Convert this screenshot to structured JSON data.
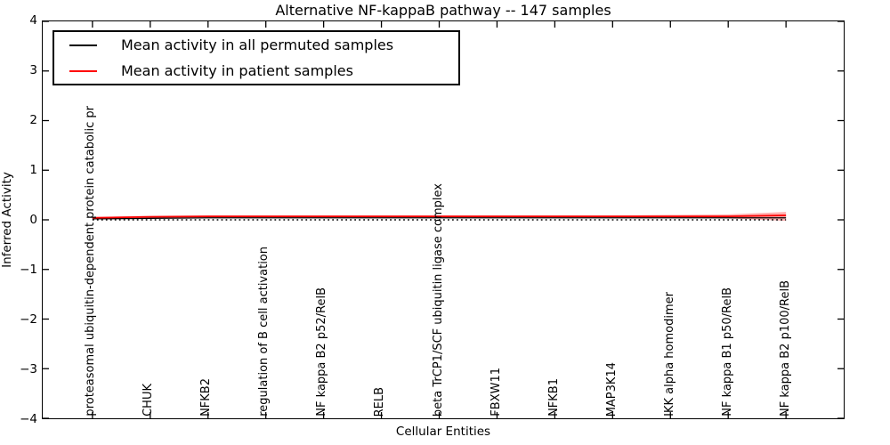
{
  "title": "Alternative NF-kappaB pathway -- 147 samples",
  "axes": {
    "xlabel": "Cellular Entities",
    "ylabel": "Inferred Activity",
    "ytick_labels": [
      "4",
      "3",
      "2",
      "1",
      "0",
      "−1",
      "−2",
      "−3",
      "−4"
    ]
  },
  "legend": {
    "entries": [
      {
        "label": "Mean activity in all permuted samples",
        "color": "#000000"
      },
      {
        "label": "Mean activity in patient samples",
        "color": "#ff0000"
      }
    ]
  },
  "chart_data": {
    "type": "line",
    "title": "Alternative NF-kappaB pathway -- 147 samples",
    "xlabel": "Cellular Entities",
    "ylabel": "Inferred Activity",
    "ylim": [
      -4,
      4
    ],
    "yticks": [
      4,
      3,
      2,
      1,
      0,
      -1,
      -2,
      -3,
      -4
    ],
    "grid": false,
    "legend_position": "upper left",
    "categories": [
      "proteasomal ubiquitin-dependent protein catabolic pr",
      "CHUK",
      "NFKB2",
      "regulation of B cell activation",
      "NF kappa B2 p52/RelB",
      "RELB",
      "beta TrCP1/SCF ubiquitin ligase complex",
      "FBXW11",
      "NFKB1",
      "MAP3K14",
      "IKK alpha homodimer",
      "NF kappa B1 p50/RelB",
      "NF kappa B2 p100/RelB"
    ],
    "series": [
      {
        "name": "Mean activity in all permuted samples",
        "color": "#000000",
        "values": [
          0.02,
          0.03,
          0.04,
          0.04,
          0.04,
          0.04,
          0.04,
          0.04,
          0.04,
          0.04,
          0.04,
          0.04,
          0.04
        ]
      },
      {
        "name": "Mean activity in patient samples",
        "color": "#ff0000",
        "values": [
          0.04,
          0.06,
          0.07,
          0.07,
          0.07,
          0.07,
          0.07,
          0.07,
          0.07,
          0.07,
          0.07,
          0.07,
          0.09
        ],
        "band_upper": [
          0.06,
          0.08,
          0.09,
          0.09,
          0.09,
          0.09,
          0.09,
          0.09,
          0.09,
          0.09,
          0.1,
          0.11,
          0.16
        ],
        "band_lower": [
          0.01,
          0.04,
          0.05,
          0.05,
          0.05,
          0.05,
          0.05,
          0.05,
          0.05,
          0.05,
          0.04,
          0.03,
          -0.02
        ]
      }
    ],
    "zero_line": {
      "value": 0,
      "style": "dotted",
      "color": "#000000"
    }
  }
}
